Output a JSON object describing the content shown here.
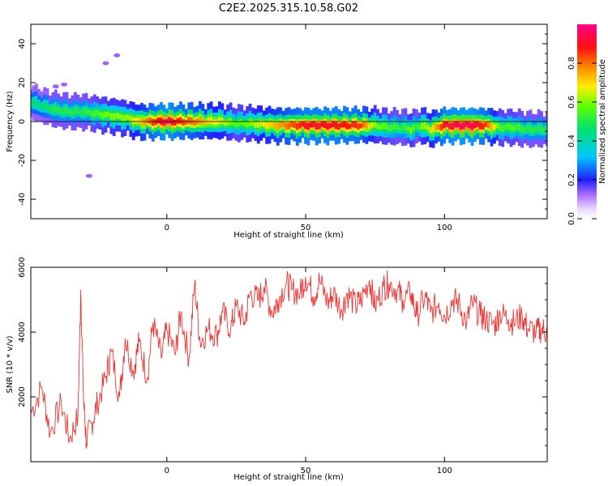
{
  "title": "C2E2.2025.315.10.58.G02",
  "chart_data": [
    {
      "type": "heatmap",
      "xlabel": "Height of straight line (km)",
      "ylabel": "Frequency (Hz)",
      "xlim": [
        -49,
        137
      ],
      "ylim": [
        -50,
        50
      ],
      "xticks": [
        0,
        50,
        100
      ],
      "yticks": [
        -40,
        -20,
        0,
        20,
        40
      ],
      "colorbar": {
        "label": "Normalized spectral amplitude",
        "range": [
          0.0,
          1.0
        ],
        "ticks": [
          "0.0",
          "0.2",
          "0.4",
          "0.6",
          "0.8"
        ]
      },
      "ridge": {
        "x": [
          -49,
          -45,
          -40,
          -35,
          -30,
          -25,
          -20,
          -15,
          -10,
          -5,
          0,
          5,
          10,
          15,
          20,
          25,
          30,
          40,
          50,
          60,
          70,
          75,
          80,
          85,
          88,
          90,
          92,
          95,
          100,
          105,
          110,
          115,
          120,
          125,
          130,
          137
        ],
        "freq": [
          10,
          8,
          6,
          5,
          5,
          4,
          3,
          2,
          0,
          0,
          0,
          0,
          0,
          0,
          0,
          -1,
          -1,
          -2,
          -2,
          -2,
          -2,
          -2,
          -3,
          -3,
          -4,
          -3,
          -2,
          -4,
          -2,
          -2,
          -2,
          -2,
          -3,
          -3,
          -4,
          -4
        ],
        "amp": [
          0.45,
          0.45,
          0.5,
          0.5,
          0.5,
          0.55,
          0.6,
          0.6,
          0.7,
          0.85,
          0.95,
          0.85,
          0.8,
          0.7,
          0.65,
          0.55,
          0.6,
          0.75,
          0.9,
          0.9,
          0.85,
          0.6,
          0.55,
          0.5,
          0.6,
          0.5,
          0.6,
          0.65,
          0.9,
          0.95,
          0.95,
          0.85,
          0.55,
          0.55,
          0.5,
          0.5
        ]
      },
      "outliers": [
        {
          "x": -44,
          "freq": 15
        },
        {
          "x": -40,
          "freq": 18
        },
        {
          "x": -37,
          "freq": 19
        },
        {
          "x": -22,
          "freq": 30
        },
        {
          "x": -18,
          "freq": 34
        },
        {
          "x": -28,
          "freq": -28
        }
      ]
    },
    {
      "type": "line",
      "xlabel": "Height of straight line (km)",
      "ylabel": "SNR (10 * v/v)",
      "xlim": [
        -49,
        137
      ],
      "ylim": [
        0,
        6000
      ],
      "xticks": [
        0,
        50,
        100
      ],
      "yticks": [
        2000,
        4000,
        6000
      ],
      "series": [
        {
          "color": "#ee3333",
          "x": [
            -49,
            -45,
            -42,
            -38,
            -35,
            -32,
            -31,
            -30,
            -29,
            -27,
            -25,
            -22,
            -20,
            -17,
            -15,
            -12,
            -10,
            -7,
            -5,
            -2,
            0,
            3,
            5,
            8,
            10,
            12,
            15,
            18,
            20,
            23,
            25,
            28,
            30,
            33,
            35,
            38,
            40,
            43,
            45,
            48,
            50,
            53,
            55,
            58,
            60,
            63,
            65,
            68,
            70,
            73,
            75,
            78,
            80,
            83,
            85,
            88,
            90,
            93,
            95,
            98,
            100,
            103,
            105,
            108,
            110,
            113,
            115,
            118,
            120,
            123,
            125,
            128,
            130,
            133,
            135,
            137
          ],
          "y": [
            1500,
            2300,
            900,
            1800,
            700,
            1400,
            5300,
            1900,
            600,
            1200,
            1800,
            2600,
            3400,
            2000,
            3800,
            2800,
            3700,
            2600,
            4300,
            3200,
            4100,
            3300,
            4600,
            3200,
            5500,
            3700,
            4100,
            3900,
            4600,
            4100,
            4800,
            4300,
            5200,
            5000,
            5400,
            4600,
            5000,
            5500,
            5300,
            5200,
            5700,
            5100,
            5600,
            4900,
            5200,
            4700,
            5200,
            4800,
            5000,
            5600,
            4800,
            5400,
            5500,
            5300,
            5000,
            5200,
            4500,
            5100,
            4600,
            4900,
            4500,
            5000,
            4900,
            4300,
            4900,
            4500,
            4400,
            4200,
            4600,
            4400,
            4300,
            4500,
            4100,
            4000,
            4100,
            4000
          ]
        }
      ]
    }
  ]
}
